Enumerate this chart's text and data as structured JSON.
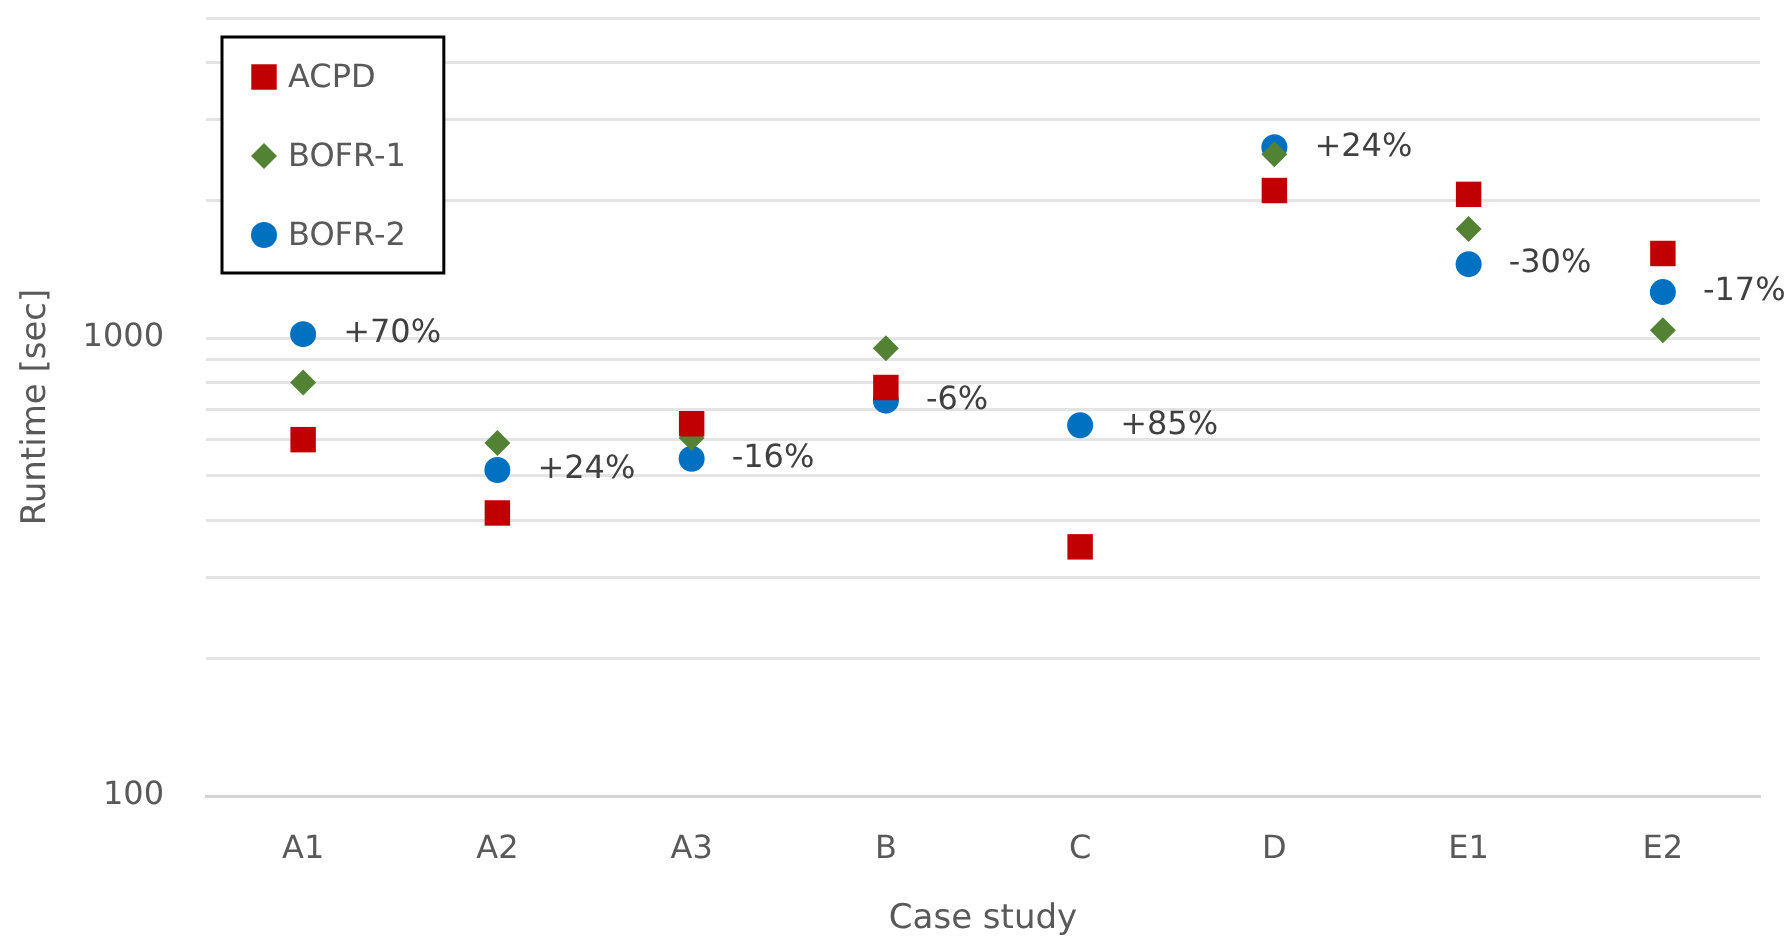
{
  "chart_data": {
    "type": "scatter",
    "xlabel": "Case study",
    "ylabel": "Runtime [sec]",
    "categories": [
      "A1",
      "A2",
      "A3",
      "B",
      "C",
      "D",
      "E1",
      "E2"
    ],
    "series": [
      {
        "name": "ACPD",
        "color": "#c00000",
        "marker": "square",
        "values": [
          600,
          415,
          650,
          780,
          350,
          2100,
          2060,
          1530
        ]
      },
      {
        "name": "BOFR-1",
        "color": "#548235",
        "marker": "diamond",
        "values": [
          800,
          590,
          605,
          950,
          null,
          2520,
          1730,
          1040
        ]
      },
      {
        "name": "BOFR-2",
        "color": "#0070c0",
        "marker": "circle",
        "values": [
          1020,
          515,
          545,
          730,
          645,
          2610,
          1450,
          1260
        ]
      }
    ],
    "log": true,
    "ylim": [
      100,
      5000
    ],
    "yticks": [
      100,
      {
        "value": 200,
        "label": null
      },
      {
        "value": 300,
        "label": null
      },
      {
        "value": 400,
        "label": null
      },
      {
        "value": 500,
        "label": null
      },
      {
        "value": 600,
        "label": null
      },
      {
        "value": 700,
        "label": null
      },
      {
        "value": 800,
        "label": null
      },
      {
        "value": 900,
        "label": null
      },
      1000,
      {
        "value": 2000,
        "label": null
      },
      {
        "value": 3000,
        "label": null
      },
      {
        "value": 4000,
        "label": null
      },
      {
        "value": 5000,
        "label": null
      }
    ],
    "grid": "y",
    "legend": "top left",
    "annotations": [
      {
        "text": "+70%",
        "x": "A1",
        "y": 1020
      },
      {
        "text": "+24%",
        "x": "A2",
        "y": 515
      },
      {
        "text": "-16%",
        "x": "A3",
        "y": 545
      },
      {
        "text": "-6%",
        "x": "B",
        "y": 730
      },
      {
        "text": "+85%",
        "x": "C",
        "y": 645
      },
      {
        "text": "+24%",
        "x": "D",
        "y": 2610
      },
      {
        "text": "-30%",
        "x": "E1",
        "y": 1450
      },
      {
        "text": "-17%",
        "x": "E2",
        "y": 1260
      }
    ]
  }
}
